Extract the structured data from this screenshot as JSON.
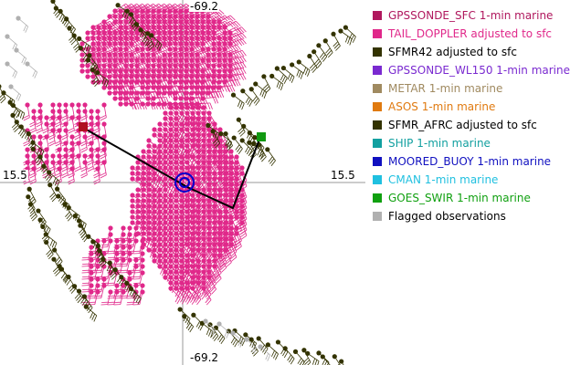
{
  "map": {
    "coord_labels": {
      "top_lon": "-69.2",
      "bottom_lon": "-69.2",
      "left_lat": "15.5",
      "right_lat": "15.5"
    },
    "colors": {
      "grid": "#999999",
      "flight_track": "#000000",
      "center_marker": "#0000cc",
      "start_marker": "#b01020",
      "end_marker": "#119911"
    }
  },
  "legend": {
    "items": [
      {
        "label": "GPSSONDE_SFC 1-min marine",
        "color": "#b0185e",
        "text_color": "#b0185e"
      },
      {
        "label": "TAIL_DOPPLER adjusted to sfc",
        "color": "#e0288a",
        "text_color": "#e0288a"
      },
      {
        "label": "SFMR42 adjusted to sfc",
        "color": "#333300",
        "text_color": "#000000"
      },
      {
        "label": "GPSSONDE_WL150 1-min marine",
        "color": "#7a2ad0",
        "text_color": "#7a2ad0"
      },
      {
        "label": "METAR 1-min marine",
        "color": "#a08a60",
        "text_color": "#a08a60"
      },
      {
        "label": "ASOS 1-min marine",
        "color": "#e07a10",
        "text_color": "#e07a10"
      },
      {
        "label": "SFMR_AFRC adjusted to sfc",
        "color": "#333300",
        "text_color": "#000000"
      },
      {
        "label": "SHIP 1-min marine",
        "color": "#12a0a0",
        "text_color": "#12a0a0"
      },
      {
        "label": "MOORED_BUOY 1-min marine",
        "color": "#1010c0",
        "text_color": "#1010c0"
      },
      {
        "label": "CMAN 1-min marine",
        "color": "#20c0e0",
        "text_color": "#20c0e0"
      },
      {
        "label": "GOES_SWIR 1-min marine",
        "color": "#10a010",
        "text_color": "#10a010"
      },
      {
        "label": "Flagged observations",
        "color": "#b0b0b0",
        "text_color": "#000000"
      }
    ]
  }
}
